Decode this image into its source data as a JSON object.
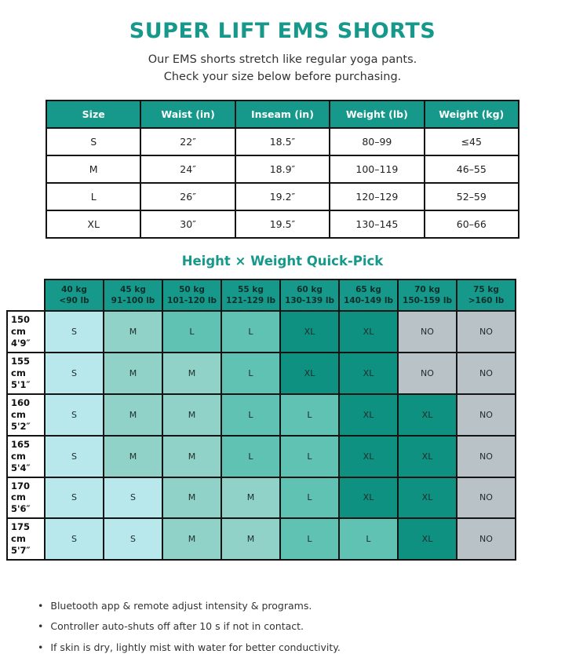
{
  "title": "SUPER LIFT EMS SHORTS",
  "subtitle_line1": "Our EMS shorts stretch like regular yoga pants.",
  "subtitle_line2": "Check your size below before purchasing.",
  "size_table": {
    "headers": [
      "Size",
      "Waist (in)",
      "Inseam (in)",
      "Weight (lb)",
      "Weight (kg)"
    ],
    "rows": [
      [
        "S",
        "22″",
        "18.5″",
        "80–99",
        "≤45"
      ],
      [
        "M",
        "24″",
        "18.9″",
        "100–119",
        "46–55"
      ],
      [
        "L",
        "26″",
        "19.2″",
        "120–129",
        "52–59"
      ],
      [
        "XL",
        "30″",
        "19.5″",
        "130–145",
        "60–66"
      ]
    ]
  },
  "quick_pick": {
    "heading": "Height × Weight Quick-Pick",
    "weight_headers": [
      {
        "kg": "40 kg",
        "lb": "<90 lb"
      },
      {
        "kg": "45 kg",
        "lb": "91-100 lb"
      },
      {
        "kg": "50 kg",
        "lb": "101-120 lb"
      },
      {
        "kg": "55 kg",
        "lb": "121-129 lb"
      },
      {
        "kg": "60 kg",
        "lb": "130-139 lb"
      },
      {
        "kg": "65 kg",
        "lb": "140-149 lb"
      },
      {
        "kg": "70 kg",
        "lb": "150-159 lb"
      },
      {
        "kg": "75 kg",
        "lb": ">160 lb"
      }
    ],
    "height_rows": [
      {
        "cm": "150 cm",
        "ft": "4'9″",
        "cells": [
          "S",
          "M",
          "L",
          "L",
          "XL",
          "XL",
          "NO",
          "NO"
        ]
      },
      {
        "cm": "155 cm",
        "ft": "5'1″",
        "cells": [
          "S",
          "M",
          "M",
          "L",
          "XL",
          "XL",
          "NO",
          "NO"
        ]
      },
      {
        "cm": "160 cm",
        "ft": "5'2″",
        "cells": [
          "S",
          "M",
          "M",
          "L",
          "L",
          "XL",
          "XL",
          "NO"
        ]
      },
      {
        "cm": "165 cm",
        "ft": "5'4″",
        "cells": [
          "S",
          "M",
          "M",
          "L",
          "L",
          "XL",
          "XL",
          "NO"
        ]
      },
      {
        "cm": "170 cm",
        "ft": "5'6″",
        "cells": [
          "S",
          "S",
          "M",
          "M",
          "L",
          "XL",
          "XL",
          "NO"
        ]
      },
      {
        "cm": "175 cm",
        "ft": "5'7″",
        "cells": [
          "S",
          "S",
          "M",
          "M",
          "L",
          "L",
          "XL",
          "NO"
        ]
      }
    ]
  },
  "notes": {
    "bullet": "•",
    "items": [
      "Bluetooth app & remote adjust intensity & programs.",
      "Controller auto-shuts off after 10 s if not in contact.",
      "If skin is dry, lightly mist with water for better conductivity."
    ]
  },
  "colors": {
    "accent": "#16988a",
    "border": "#141414",
    "cell_s": "#b8e7ec",
    "cell_m": "#90d2c7",
    "cell_l": "#5fc2b3",
    "cell_xl": "#0f9182",
    "cell_no": "#b9c3c7"
  }
}
